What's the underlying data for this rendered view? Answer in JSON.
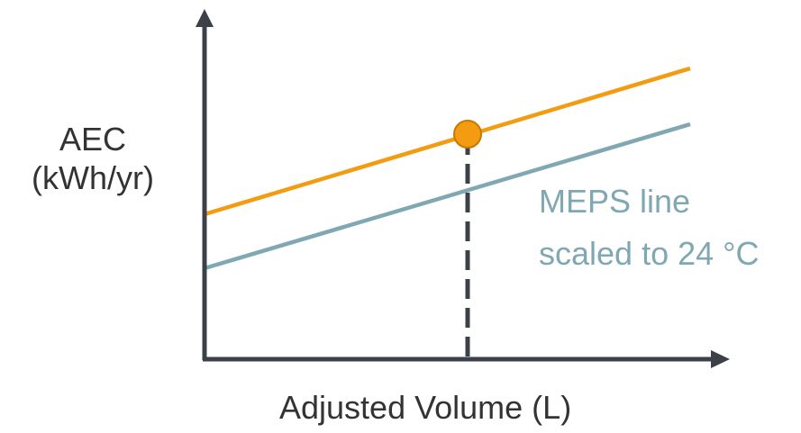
{
  "axes": {
    "y_label_line1": "AEC",
    "y_label_line2": "(kWh/yr)",
    "x_label": "Adjusted Volume (L)"
  },
  "series": {
    "upper_line_color": "#f39c12",
    "meps_line_color": "#7fa8b2",
    "meps_label_line1": "MEPS line",
    "meps_label_line2": "scaled to 24 °C"
  },
  "colors": {
    "axis": "#3c4048",
    "marker_fill": "#f39c12",
    "marker_stroke": "#c87800",
    "dashed_guide": "#3c4048"
  }
}
